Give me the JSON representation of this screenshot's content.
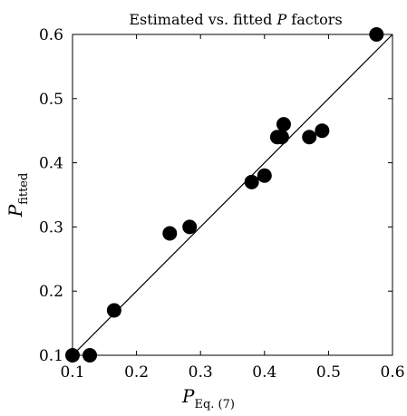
{
  "chart_data": {
    "type": "scatter",
    "title_pre": "Estimated vs. fitted ",
    "title_italic": "P",
    "title_post": " factors",
    "xlabel_main": "P",
    "xlabel_sub": "Eq. (7)",
    "ylabel_main": "P",
    "ylabel_sub": "fitted",
    "xlim": [
      0.1,
      0.6
    ],
    "ylim": [
      0.1,
      0.6
    ],
    "xticks": [
      "0.1",
      "0.2",
      "0.3",
      "0.4",
      "0.5",
      "0.6"
    ],
    "yticks": [
      "0.1",
      "0.2",
      "0.3",
      "0.4",
      "0.5",
      "0.6"
    ],
    "grid": false,
    "reference_line": {
      "from": [
        0.1,
        0.1
      ],
      "to": [
        0.6,
        0.6
      ]
    },
    "points": [
      {
        "x": 0.1,
        "y": 0.1
      },
      {
        "x": 0.127,
        "y": 0.1
      },
      {
        "x": 0.165,
        "y": 0.17
      },
      {
        "x": 0.252,
        "y": 0.29
      },
      {
        "x": 0.283,
        "y": 0.3
      },
      {
        "x": 0.38,
        "y": 0.37
      },
      {
        "x": 0.4,
        "y": 0.38
      },
      {
        "x": 0.42,
        "y": 0.44
      },
      {
        "x": 0.427,
        "y": 0.44
      },
      {
        "x": 0.43,
        "y": 0.46
      },
      {
        "x": 0.47,
        "y": 0.44
      },
      {
        "x": 0.49,
        "y": 0.45
      },
      {
        "x": 0.575,
        "y": 0.6
      }
    ],
    "marker_color": "#000000",
    "line_color": "#000000"
  }
}
